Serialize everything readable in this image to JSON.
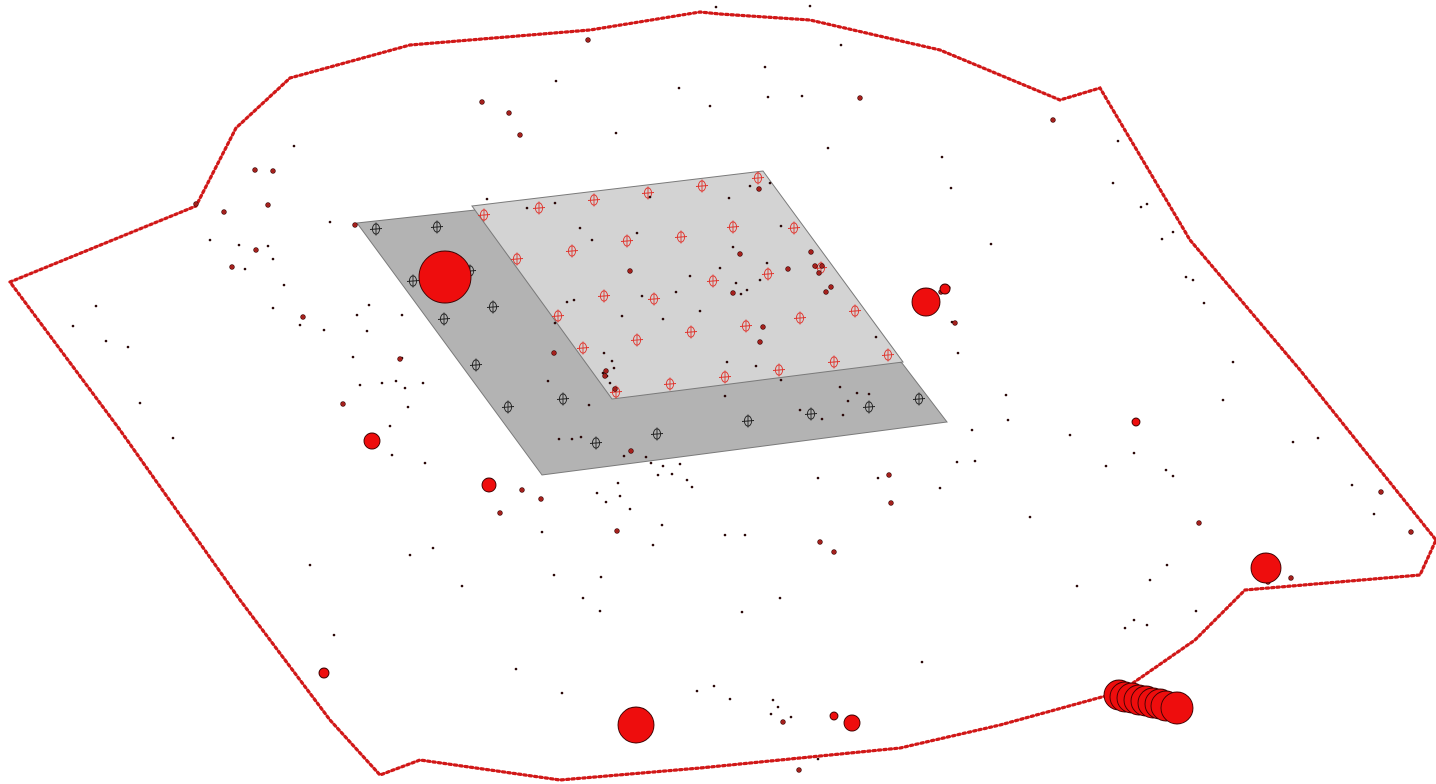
{
  "colors": {
    "background": "#ffffff",
    "boundary": "#d11818",
    "outer_plate": "#b3b3b3",
    "inner_plate": "#d3d3d3",
    "plate_edge": "#7a7a7a",
    "big_marker_fill": "#ee0d0d",
    "small_marker_fill": "#a4201c",
    "tiny_marker_fill": "#2a0808",
    "cross_black": "#222222",
    "cross_red": "#e0342d"
  },
  "icons": {
    "boundary": "dotted-boundary-line",
    "plates": "grey-parallelogram-plates",
    "markers": "red-circle-markers",
    "crosses": "circle-cross-grid-markers"
  },
  "legend": [],
  "labels": []
}
